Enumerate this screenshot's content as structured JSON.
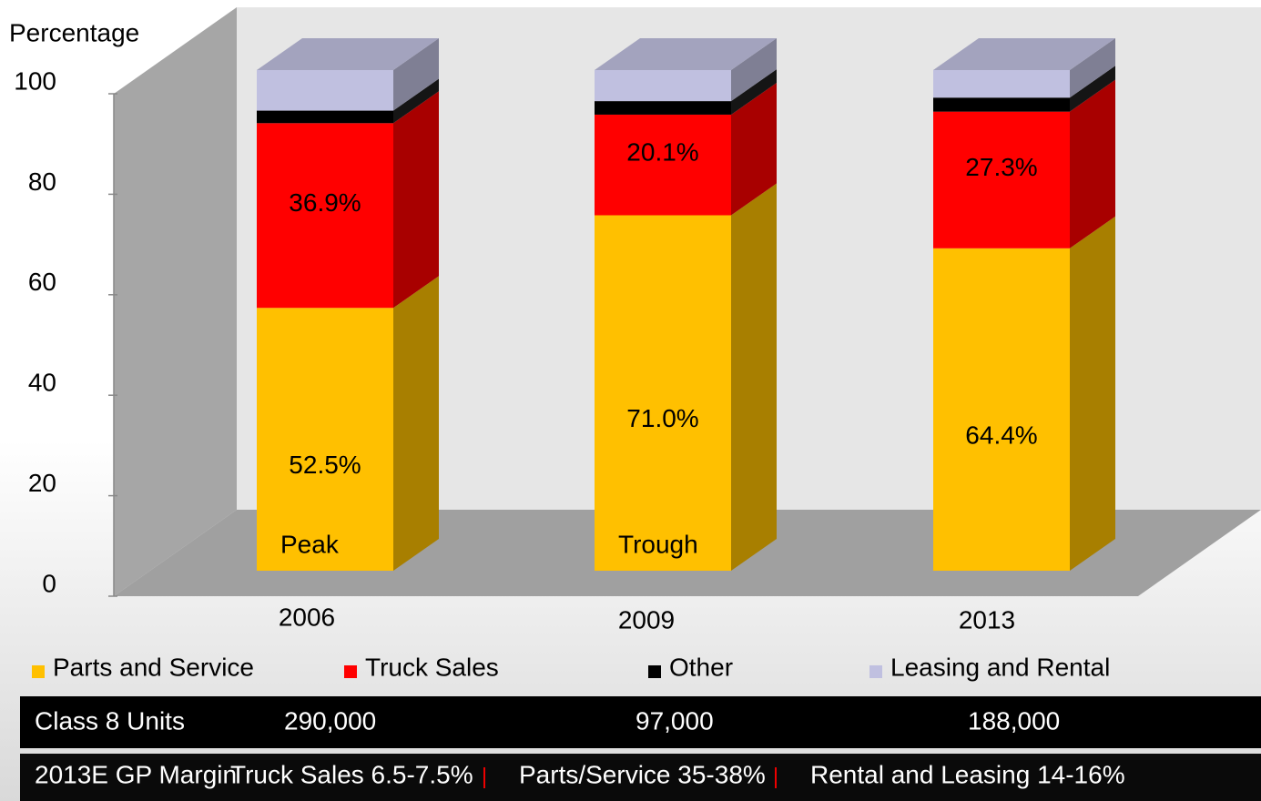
{
  "chart_data": {
    "type": "stacked-bar-3d",
    "y_label": "Percentage",
    "categories": [
      "2006",
      "2009",
      "2013"
    ],
    "series": [
      {
        "name": "Parts and Service",
        "color": "#ffc000",
        "values": [
          52.5,
          71.0,
          64.4
        ],
        "value_labels": [
          "52.5%",
          "71.0%",
          "64.4%"
        ]
      },
      {
        "name": "Truck Sales",
        "color": "#ff0000",
        "values": [
          36.9,
          20.1,
          27.3
        ],
        "value_labels": [
          "36.9%",
          "20.1%",
          "27.3%"
        ]
      },
      {
        "name": "Other",
        "color": "#000000",
        "values": [
          2.5,
          2.7,
          2.8
        ]
      },
      {
        "name": "Leasing and Rental",
        "color": "#c0c0e0",
        "values": [
          8.1,
          6.2,
          5.5
        ]
      }
    ],
    "ylim": [
      0,
      100
    ],
    "yticks": [
      0,
      20,
      40,
      60,
      80,
      100
    ],
    "annotations": [
      {
        "text": "Peak",
        "category": "2006"
      },
      {
        "text": "Trough",
        "category": "2009"
      }
    ]
  },
  "units_row": {
    "label": "Class 8 Units",
    "values": [
      "290,000",
      "97,000",
      "188,000"
    ]
  },
  "footer": {
    "label": "2013E GP Margin",
    "items": [
      "Truck Sales 6.5-7.5%",
      "Parts/Service 35-38%",
      "Rental and Leasing 14-16%"
    ]
  }
}
